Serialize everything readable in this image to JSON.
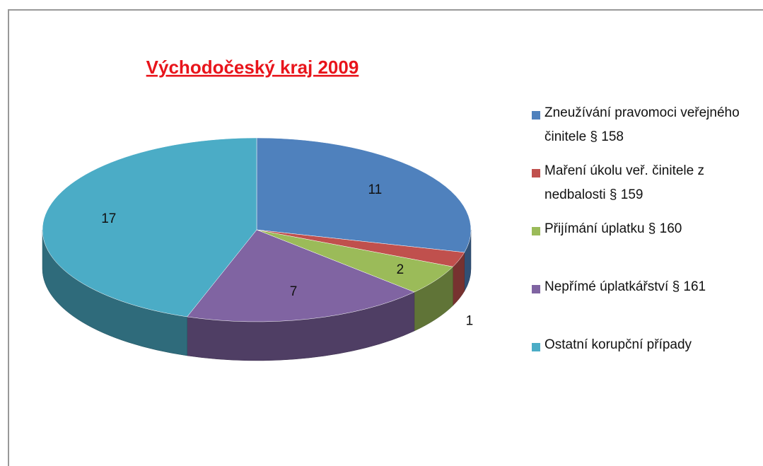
{
  "chart_data": {
    "type": "pie3d",
    "title": "Východočeský kraj 2009",
    "categories": [
      "Zneužívání pravomoci veřejného činitele § 158",
      "Maření úkolu veř. činitele z nedbalosti § 159",
      "Přijímání úplatku § 160",
      "Nepřímé úplatkářství § 161",
      "Ostatní korupční případy"
    ],
    "values": [
      11,
      1,
      2,
      7,
      17
    ],
    "colors": [
      "#4f81bd",
      "#c0504d",
      "#9bbb59",
      "#8064a2",
      "#4bacc6"
    ],
    "legend": "right"
  }
}
